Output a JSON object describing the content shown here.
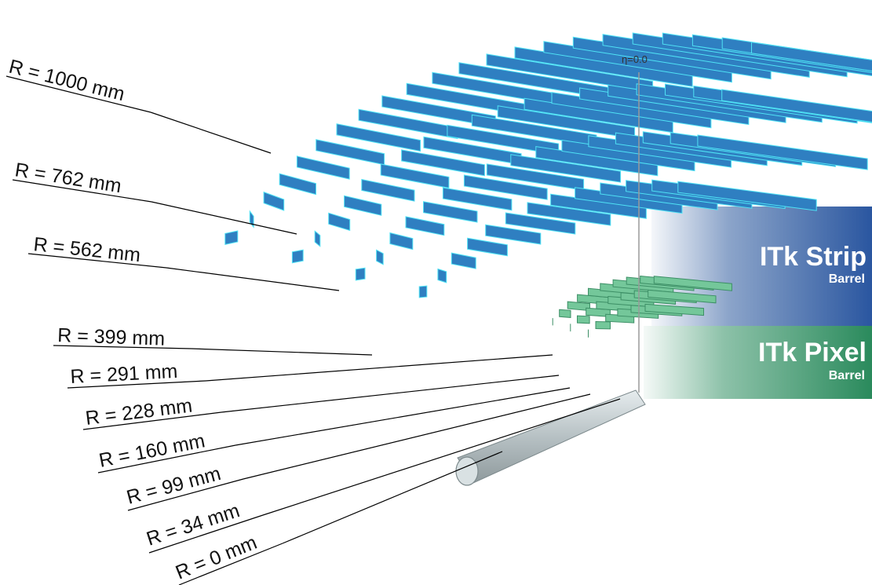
{
  "diagram": {
    "eta_label": "η=0.0",
    "radius_labels": [
      "R = 1000 mm",
      "R = 762 mm",
      "R = 562 mm",
      "R = 399 mm",
      "R = 291 mm",
      "R = 228 mm",
      "R = 160 mm",
      "R = 99 mm",
      "R = 34 mm",
      "R = 0 mm"
    ],
    "strip_band": {
      "title": "ITk Strip",
      "subtitle": "Barrel"
    },
    "pixel_band": {
      "title": "ITk Pixel",
      "subtitle": "Barrel"
    },
    "colors": {
      "strip_module": "#2f7fc1",
      "strip_edge": "#4fe3f5",
      "pixel_module": "#74c79a",
      "strip_band": "#2d5a9e",
      "pixel_band": "#2f8f62",
      "beam_pipe": "#c9d1d3"
    }
  }
}
